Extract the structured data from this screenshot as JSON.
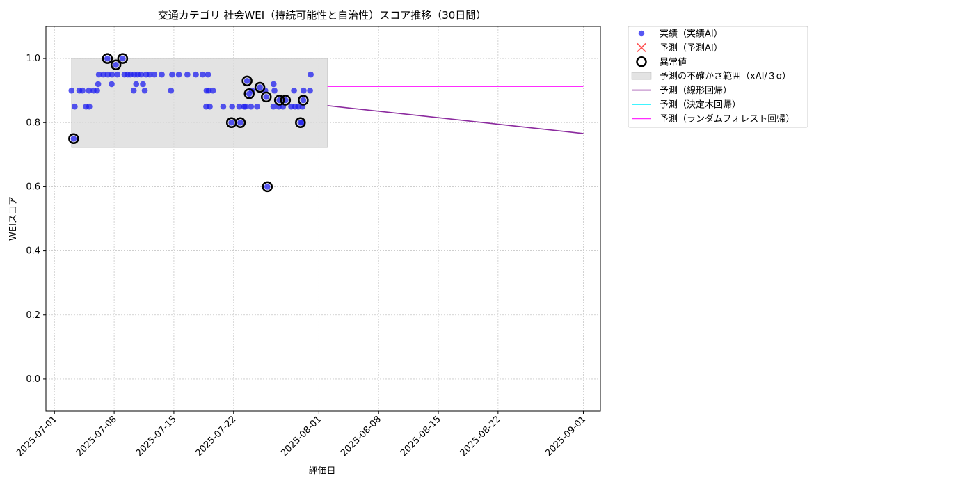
{
  "chart_data": {
    "type": "scatter",
    "title": "交通カテゴリ 社会WEI（持続可能性と自治性）スコア推移（30日間）",
    "xlabel": "評価日",
    "ylabel": "WEIスコア",
    "xlim": [
      "2025-06-30T00:00",
      "2025-09-03T00:00"
    ],
    "ylim": [
      -0.1,
      1.1
    ],
    "yticks": [
      0.0,
      0.2,
      0.4,
      0.6,
      0.8,
      1.0
    ],
    "ytick_labels": [
      "0.0",
      "0.2",
      "0.4",
      "0.6",
      "0.8",
      "1.0"
    ],
    "xticks": [
      "2025-07-01",
      "2025-07-08",
      "2025-07-15",
      "2025-07-22",
      "2025-08-01",
      "2025-08-08",
      "2025-08-15",
      "2025-08-22",
      "2025-09-01"
    ],
    "grid": true,
    "legend_position": "outside-top-right",
    "colors": {
      "actual": "#1f1fef",
      "predicted_marker": "#ff3333",
      "anomaly_edge": "#000000",
      "band": "#d9d9d9",
      "linear": "#8b2a9e",
      "tree": "#00f0ff",
      "forest": "#ff2dff"
    },
    "legend": [
      {
        "key": "actual",
        "label": "実績（実績AI）",
        "kind": "dot"
      },
      {
        "key": "predicted",
        "label": "予測（予測AI）",
        "kind": "cross"
      },
      {
        "key": "anomaly",
        "label": "異常値",
        "kind": "ring"
      },
      {
        "key": "band",
        "label": "予測の不確かさ範囲（xAI/３σ）",
        "kind": "box"
      },
      {
        "key": "linear",
        "label": "予測（線形回帰）",
        "kind": "line"
      },
      {
        "key": "tree",
        "label": "予測（決定木回帰）",
        "kind": "line"
      },
      {
        "key": "forest",
        "label": "予測（ランダムフォレスト回帰）",
        "kind": "line"
      }
    ],
    "band": {
      "x_start": "2025-07-03T00:00",
      "x_end": "2025-08-02T00:00",
      "y_low": 0.722,
      "y_high": 1.0
    },
    "series": [
      {
        "name": "実績（実績AI）",
        "kind": "scatter",
        "points": [
          [
            "2025-07-03T00:00",
            0.9
          ],
          [
            "2025-07-03T09:00",
            0.85
          ],
          [
            "2025-07-03T06:00",
            0.75
          ],
          [
            "2025-07-03T22:00",
            0.9
          ],
          [
            "2025-07-04T07:00",
            0.9
          ],
          [
            "2025-07-04T17:00",
            0.85
          ],
          [
            "2025-07-05T02:00",
            0.85
          ],
          [
            "2025-07-05T01:00",
            0.9
          ],
          [
            "2025-07-05T14:00",
            0.9
          ],
          [
            "2025-07-06T00:00",
            0.9
          ],
          [
            "2025-07-06T03:00",
            0.92
          ],
          [
            "2025-07-06T05:00",
            0.95
          ],
          [
            "2025-07-06T18:00",
            0.95
          ],
          [
            "2025-07-07T05:00",
            1.0
          ],
          [
            "2025-07-07T06:00",
            0.95
          ],
          [
            "2025-07-07T17:00",
            0.92
          ],
          [
            "2025-07-07T18:00",
            0.95
          ],
          [
            "2025-07-08T05:00",
            0.98
          ],
          [
            "2025-07-08T09:00",
            0.95
          ],
          [
            "2025-07-09T00:00",
            1.0
          ],
          [
            "2025-07-09T05:00",
            0.95
          ],
          [
            "2025-07-09T14:00",
            0.95
          ],
          [
            "2025-07-09T22:00",
            0.95
          ],
          [
            "2025-07-10T07:00",
            0.9
          ],
          [
            "2025-07-10T09:00",
            0.95
          ],
          [
            "2025-07-10T14:00",
            0.92
          ],
          [
            "2025-07-10T18:00",
            0.95
          ],
          [
            "2025-07-11T04:00",
            0.95
          ],
          [
            "2025-07-11T09:00",
            0.92
          ],
          [
            "2025-07-11T14:00",
            0.9
          ],
          [
            "2025-07-11T18:00",
            0.95
          ],
          [
            "2025-07-12T04:00",
            0.95
          ],
          [
            "2025-07-12T17:00",
            0.95
          ],
          [
            "2025-07-13T14:00",
            0.95
          ],
          [
            "2025-07-14T16:00",
            0.9
          ],
          [
            "2025-07-14T19:00",
            0.95
          ],
          [
            "2025-07-15T14:00",
            0.95
          ],
          [
            "2025-07-16T14:00",
            0.95
          ],
          [
            "2025-07-17T14:00",
            0.95
          ],
          [
            "2025-07-18T09:00",
            0.95
          ],
          [
            "2025-07-18T19:00",
            0.85
          ],
          [
            "2025-07-18T20:00",
            0.9
          ],
          [
            "2025-07-19T00:00",
            0.95
          ],
          [
            "2025-07-19T02:00",
            0.9
          ],
          [
            "2025-07-19T05:00",
            0.85
          ],
          [
            "2025-07-19T14:00",
            0.9
          ],
          [
            "2025-07-20T19:00",
            0.85
          ],
          [
            "2025-07-21T18:00",
            0.8
          ],
          [
            "2025-07-21T20:00",
            0.85
          ],
          [
            "2025-07-22T16:00",
            0.85
          ],
          [
            "2025-07-22T19:00",
            0.8
          ],
          [
            "2025-07-23T06:00",
            0.85
          ],
          [
            "2025-07-23T09:00",
            0.85
          ],
          [
            "2025-07-23T14:00",
            0.93
          ],
          [
            "2025-07-23T20:00",
            0.89
          ],
          [
            "2025-07-24T01:00",
            0.85
          ],
          [
            "2025-07-24T04:00",
            0.9
          ],
          [
            "2025-07-24T18:00",
            0.85
          ],
          [
            "2025-07-25T02:00",
            0.91
          ],
          [
            "2025-07-25T17:00",
            0.9
          ],
          [
            "2025-07-25T20:00",
            0.88
          ],
          [
            "2025-07-25T23:00",
            0.6
          ],
          [
            "2025-07-26T16:00",
            0.85
          ],
          [
            "2025-07-26T16:30",
            0.92
          ],
          [
            "2025-07-26T19:00",
            0.9
          ],
          [
            "2025-07-27T07:00",
            0.85
          ],
          [
            "2025-07-27T09:00",
            0.87
          ],
          [
            "2025-07-27T19:00",
            0.85
          ],
          [
            "2025-07-28T02:00",
            0.87
          ],
          [
            "2025-07-28T18:00",
            0.85
          ],
          [
            "2025-07-29T02:00",
            0.9
          ],
          [
            "2025-07-29T05:00",
            0.85
          ],
          [
            "2025-07-29T14:00",
            0.85
          ],
          [
            "2025-07-29T20:00",
            0.8
          ],
          [
            "2025-07-30T00:00",
            0.8
          ],
          [
            "2025-07-30T02:00",
            0.85
          ],
          [
            "2025-07-30T04:00",
            0.87
          ],
          [
            "2025-07-30T05:00",
            0.9
          ],
          [
            "2025-07-30T23:00",
            0.9
          ],
          [
            "2025-07-31T01:00",
            0.95
          ]
        ]
      },
      {
        "name": "異常値",
        "kind": "anomaly",
        "points": [
          [
            "2025-07-03T06:00",
            0.75
          ],
          [
            "2025-07-07T05:00",
            1.0
          ],
          [
            "2025-07-08T05:00",
            0.98
          ],
          [
            "2025-07-09T00:00",
            1.0
          ],
          [
            "2025-07-21T18:00",
            0.8
          ],
          [
            "2025-07-22T19:00",
            0.8
          ],
          [
            "2025-07-23T14:00",
            0.93
          ],
          [
            "2025-07-23T20:00",
            0.89
          ],
          [
            "2025-07-25T02:00",
            0.91
          ],
          [
            "2025-07-25T20:00",
            0.88
          ],
          [
            "2025-07-25T23:00",
            0.6
          ],
          [
            "2025-07-27T09:00",
            0.87
          ],
          [
            "2025-07-28T02:00",
            0.87
          ],
          [
            "2025-07-29T20:00",
            0.8
          ],
          [
            "2025-07-30T04:00",
            0.87
          ]
        ]
      },
      {
        "name": "予測（線形回帰）",
        "kind": "line",
        "points": [
          [
            "2025-08-02T00:00",
            0.853
          ],
          [
            "2025-09-01T00:00",
            0.766
          ]
        ]
      },
      {
        "name": "予測（ランダムフォレスト回帰）",
        "kind": "line",
        "points": [
          [
            "2025-08-02T00:00",
            0.913
          ],
          [
            "2025-09-01T00:00",
            0.913
          ]
        ]
      }
    ]
  }
}
